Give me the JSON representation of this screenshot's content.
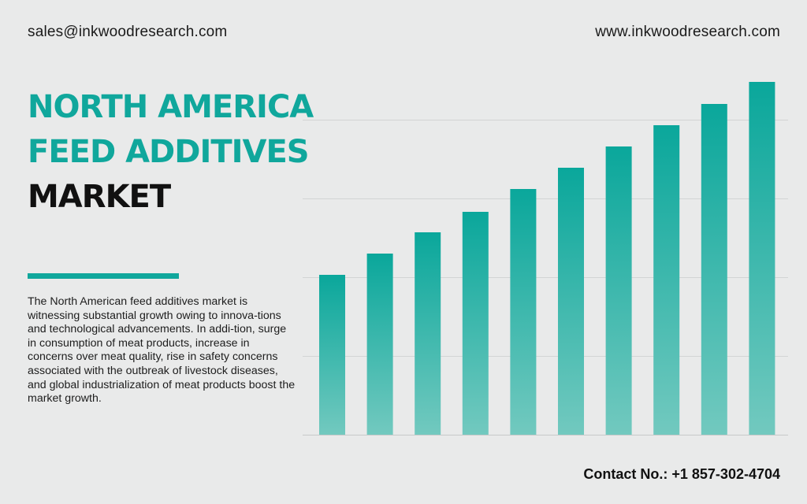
{
  "header": {
    "email": "sales@inkwoodresearch.com",
    "website": "www.inkwoodresearch.com"
  },
  "title": {
    "line1": "NORTH AMERICA",
    "line2": "FEED ADDITIVES",
    "line3": "MARKET"
  },
  "description": "The North American feed additives market is witnessing substantial growth owing to innova-tions and technological advancements. In addi-tion, surge in consumption of meat products, increase in concerns over meat quality, rise in safety concerns associated with the outbreak of livestock diseases, and global industrialization of meat products boost the market growth.",
  "footer": {
    "contact": "Contact No.: +1 857-302-4704"
  },
  "colors": {
    "accent": "#10a79c",
    "bar_top": "#0aa79b",
    "bar_bottom": "#72c9bf",
    "background": "#e9eaea"
  },
  "chart_data": {
    "type": "bar",
    "categories": [
      "",
      "",
      "",
      "",
      "",
      "",
      "",
      "",
      "",
      ""
    ],
    "values": [
      2.03,
      2.3,
      2.57,
      2.83,
      3.12,
      3.39,
      3.66,
      3.93,
      4.2,
      4.48
    ],
    "title": "",
    "xlabel": "",
    "ylabel": "",
    "ylim": [
      0,
      5
    ],
    "grid": true,
    "legend": "none"
  }
}
